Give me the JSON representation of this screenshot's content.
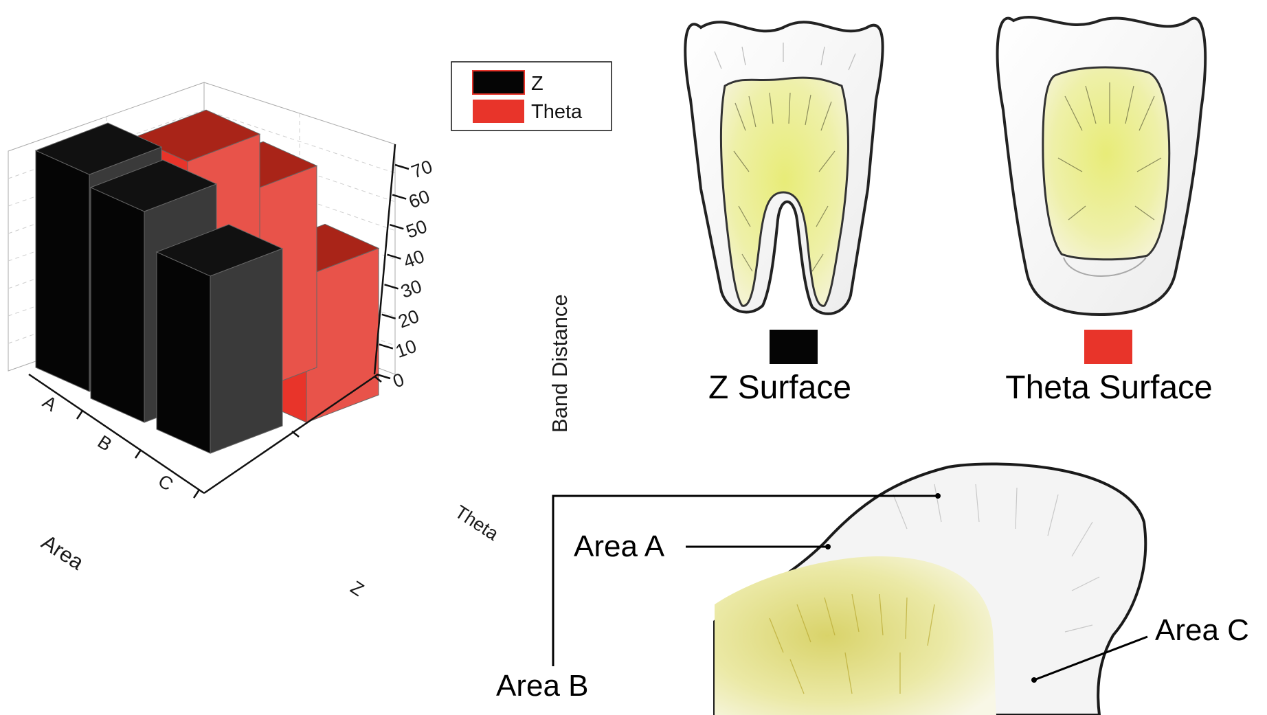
{
  "chart_data": {
    "type": "bar",
    "subtype": "3d-bar",
    "categories": [
      "A",
      "B",
      "C"
    ],
    "depth_categories": [
      "Theta",
      "Z"
    ],
    "series": [
      {
        "name": "Z",
        "values": [
          71,
          69,
          58
        ],
        "color": "#050505"
      },
      {
        "name": "Theta",
        "values": [
          64,
          66,
          48
        ],
        "color": "#e8342a"
      }
    ],
    "xlabel": "Area",
    "ylabel": "",
    "zlabel": "Band Distance",
    "zlim": [
      0,
      70
    ],
    "zticks": [
      0,
      10,
      20,
      30,
      40,
      50,
      60,
      70
    ],
    "grid": true,
    "legend_position": "top"
  },
  "surfaces": {
    "z_label": "Z Surface",
    "z_color": "#050505",
    "theta_label": "Theta Surface",
    "theta_color": "#e8342a"
  },
  "areas": {
    "a": "Area A",
    "b": "Area B",
    "c": "Area C"
  }
}
